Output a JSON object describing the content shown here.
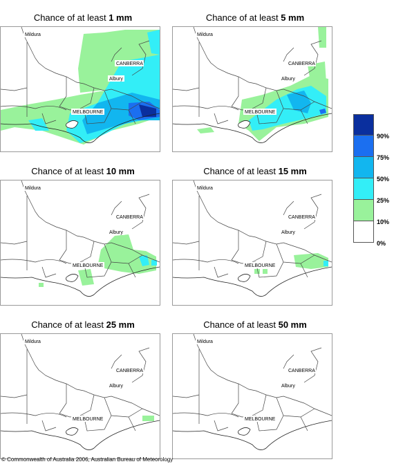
{
  "panels": [
    {
      "prefix": "Chance of at least ",
      "amount": "1 mm"
    },
    {
      "prefix": "Chance of at least ",
      "amount": "5 mm"
    },
    {
      "prefix": "Chance of at least ",
      "amount": "10 mm"
    },
    {
      "prefix": "Chance of at least ",
      "amount": "15 mm"
    },
    {
      "prefix": "Chance of at least ",
      "amount": "25 mm"
    },
    {
      "prefix": "Chance of at least ",
      "amount": "50 mm"
    }
  ],
  "places": {
    "mildura": "Mildura",
    "canberra": "CANBERRA",
    "albury": "Albury",
    "melbourne": "MELBOURNE"
  },
  "legend": {
    "colors": [
      "#0a2f9e",
      "#1b6ff0",
      "#12b6ef",
      "#33eef7",
      "#99f29b",
      "#ffffff"
    ],
    "labels": [
      "90%",
      "75%",
      "50%",
      "25%",
      "10%",
      "0%"
    ]
  },
  "copyright": "© Commonwealth of Australia 2006, Australian Bureau of Meteorology"
}
